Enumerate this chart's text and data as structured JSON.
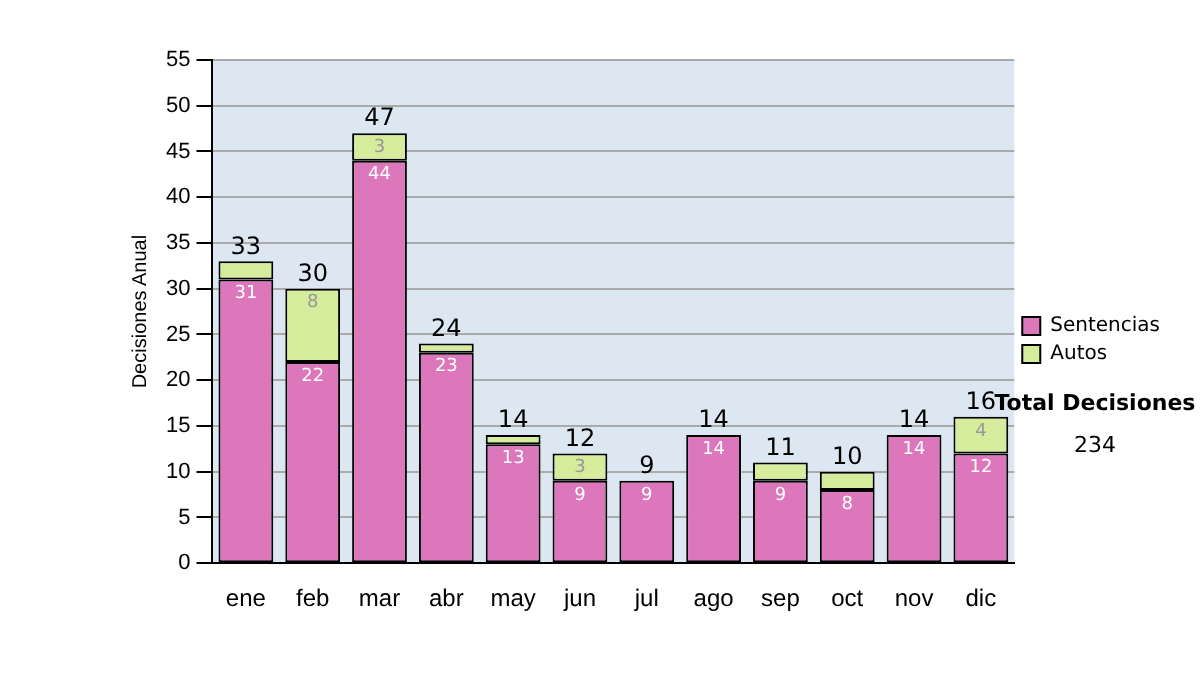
{
  "chart_data": {
    "type": "bar",
    "stacked": true,
    "ylabel": "Decisiones Anual",
    "categories": [
      "ene",
      "feb",
      "mar",
      "abr",
      "may",
      "jun",
      "jul",
      "ago",
      "sep",
      "oct",
      "nov",
      "dic"
    ],
    "series": [
      {
        "name": "Sentencias",
        "color": "#dd77bb",
        "values": [
          31,
          22,
          44,
          23,
          13,
          9,
          9,
          14,
          9,
          8,
          14,
          12
        ],
        "value_labels": [
          "31",
          "22",
          "44",
          "23",
          "13",
          "9",
          "9",
          "14",
          "9",
          "8",
          "14",
          "12"
        ]
      },
      {
        "name": "Autos",
        "color": "#d4ec9c",
        "values": [
          2,
          8,
          3,
          1,
          1,
          3,
          0,
          0,
          2,
          2,
          0,
          4
        ],
        "value_labels": [
          null,
          "8",
          "3",
          null,
          null,
          "3",
          null,
          null,
          null,
          null,
          null,
          "4"
        ]
      }
    ],
    "totals": [
      "33",
      "30",
      "47",
      "24",
      "14",
      "12",
      "9",
      "14",
      "11",
      "10",
      "14",
      "16"
    ],
    "ylim": [
      0,
      55
    ],
    "yticks": [
      0,
      5,
      10,
      15,
      20,
      25,
      30,
      35,
      40,
      45,
      50,
      55
    ],
    "grid": "y",
    "legend": "right",
    "annotations": [
      "Total Decisiones",
      "234"
    ]
  }
}
